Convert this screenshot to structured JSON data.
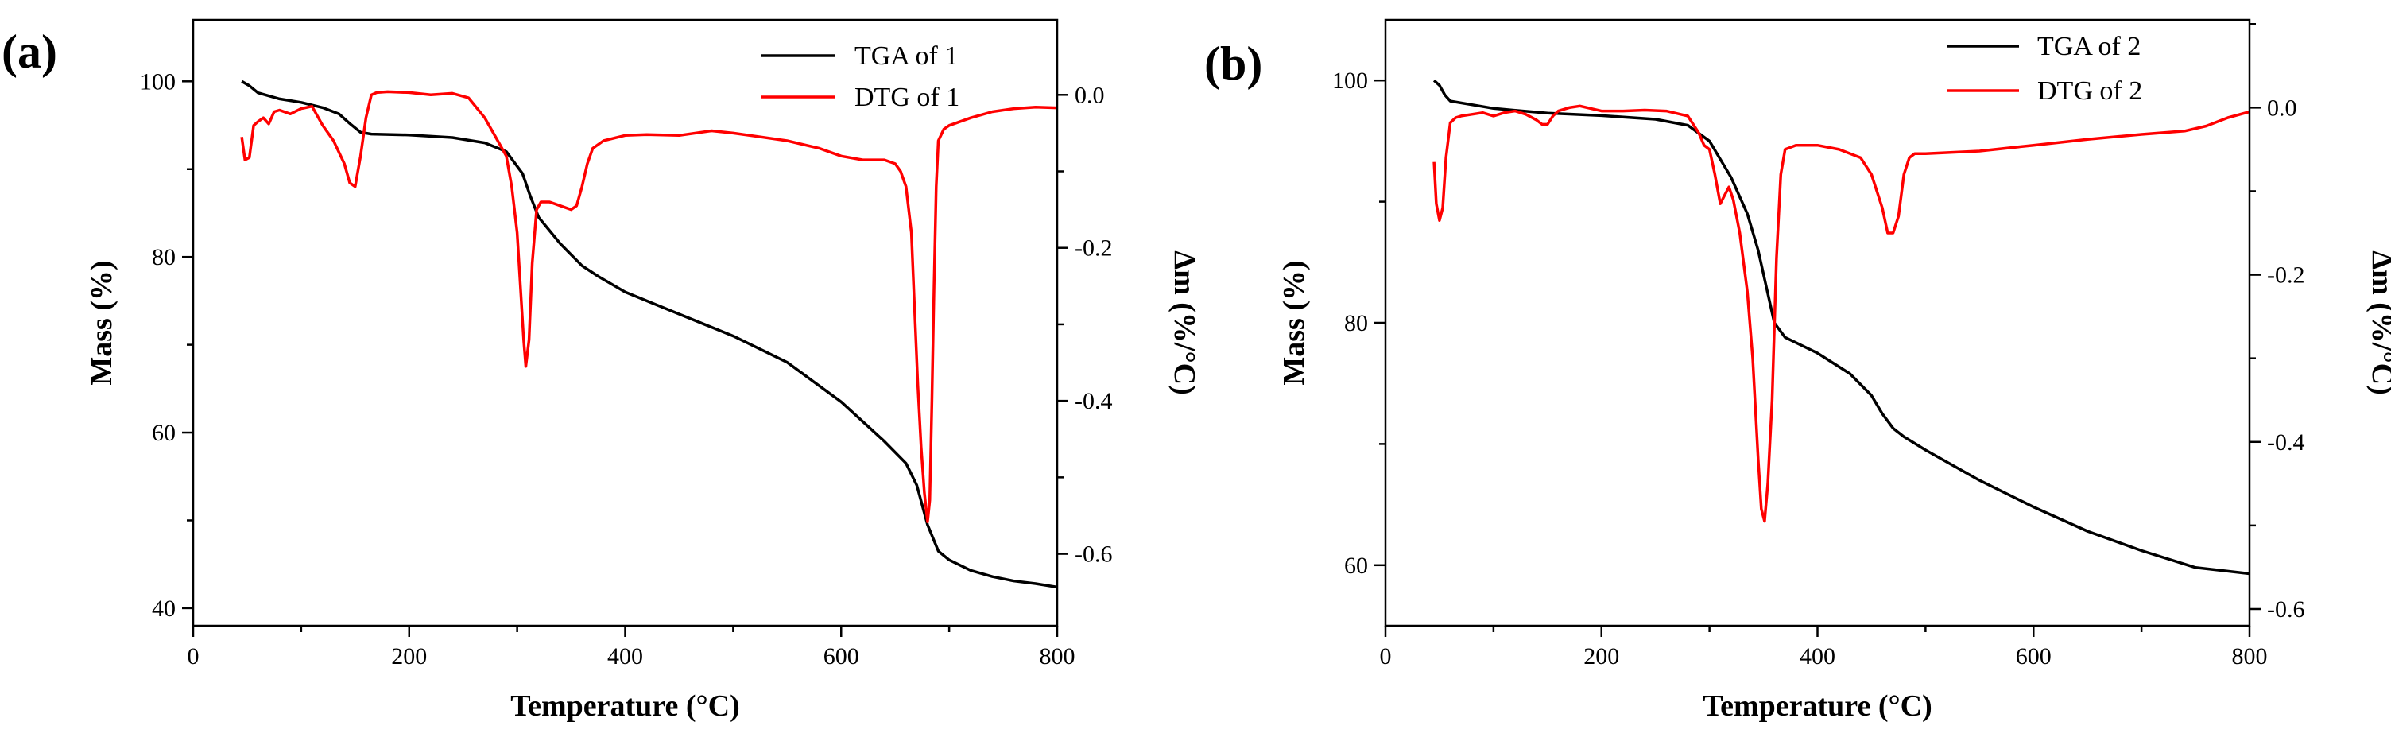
{
  "chart_data": [
    {
      "type": "line",
      "panel_label": "(a)",
      "xlabel": "Temperature (°C)",
      "ylabel": "Mass (%)",
      "y2label": "Δm (%/°C)",
      "xlim": [
        0,
        800
      ],
      "ylim": [
        38,
        107
      ],
      "y2lim": [
        -0.694,
        0.098
      ],
      "xticks": [
        0,
        200,
        400,
        600,
        800
      ],
      "yticks": [
        40,
        60,
        80,
        100
      ],
      "y2ticks": [
        0.0,
        -0.2,
        -0.4,
        -0.6
      ],
      "y2ticklabels": [
        "0.0",
        "-0.2",
        "-0.4",
        "-0.6"
      ],
      "legend_position": "top-right",
      "series": [
        {
          "name": "TGA of 1",
          "axis": "left",
          "color": "#000000",
          "x": [
            45,
            52,
            60,
            80,
            100,
            120,
            135,
            145,
            155,
            165,
            200,
            240,
            270,
            290,
            305,
            312,
            320,
            340,
            360,
            375,
            400,
            450,
            500,
            550,
            600,
            640,
            660,
            670,
            680,
            690,
            700,
            720,
            740,
            760,
            780,
            800
          ],
          "y": [
            100.0,
            99.5,
            98.7,
            98.0,
            97.6,
            97.0,
            96.3,
            95.2,
            94.2,
            94.0,
            93.9,
            93.6,
            93.0,
            92.0,
            89.5,
            87.0,
            84.5,
            81.5,
            79.0,
            77.8,
            76.0,
            73.5,
            71.0,
            68.0,
            63.5,
            59.0,
            56.5,
            54.0,
            49.5,
            46.5,
            45.5,
            44.3,
            43.6,
            43.1,
            42.8,
            42.4
          ]
        },
        {
          "name": "DTG of 1",
          "axis": "right",
          "color": "#ff0000",
          "x": [
            45,
            48,
            52,
            56,
            60,
            65,
            70,
            75,
            80,
            90,
            100,
            110,
            120,
            130,
            140,
            145,
            150,
            155,
            160,
            165,
            170,
            180,
            200,
            220,
            240,
            255,
            270,
            280,
            290,
            295,
            300,
            303,
            306,
            308,
            311,
            314,
            318,
            322,
            326,
            330,
            340,
            350,
            355,
            360,
            365,
            370,
            380,
            400,
            420,
            450,
            480,
            500,
            520,
            550,
            580,
            600,
            620,
            640,
            650,
            655,
            660,
            665,
            668,
            671,
            674,
            677,
            680,
            682,
            684,
            686,
            688,
            690,
            695,
            700,
            720,
            740,
            760,
            780,
            800
          ],
          "y": [
            -0.055,
            -0.085,
            -0.082,
            -0.04,
            -0.035,
            -0.03,
            -0.038,
            -0.022,
            -0.02,
            -0.025,
            -0.018,
            -0.015,
            -0.04,
            -0.06,
            -0.09,
            -0.115,
            -0.12,
            -0.08,
            -0.03,
            0.0,
            0.003,
            0.004,
            0.003,
            0.0,
            0.002,
            -0.004,
            -0.03,
            -0.055,
            -0.08,
            -0.12,
            -0.18,
            -0.25,
            -0.32,
            -0.355,
            -0.32,
            -0.22,
            -0.15,
            -0.14,
            -0.14,
            -0.14,
            -0.145,
            -0.15,
            -0.145,
            -0.12,
            -0.09,
            -0.07,
            -0.06,
            -0.053,
            -0.052,
            -0.053,
            -0.047,
            -0.05,
            -0.054,
            -0.06,
            -0.07,
            -0.08,
            -0.085,
            -0.085,
            -0.09,
            -0.1,
            -0.12,
            -0.18,
            -0.28,
            -0.38,
            -0.46,
            -0.52,
            -0.558,
            -0.53,
            -0.4,
            -0.25,
            -0.12,
            -0.06,
            -0.045,
            -0.04,
            -0.03,
            -0.022,
            -0.018,
            -0.016,
            -0.017
          ]
        }
      ]
    },
    {
      "type": "line",
      "panel_label": "(b)",
      "xlabel": "Temperature (°C)",
      "ylabel": "Mass (%)",
      "y2label": "Δm (%/°C)",
      "xlim": [
        0,
        800
      ],
      "ylim": [
        55,
        105
      ],
      "y2lim": [
        -0.62,
        0.105
      ],
      "xticks": [
        0,
        200,
        400,
        600,
        800
      ],
      "yticks": [
        60,
        80,
        100
      ],
      "y2ticks": [
        0.0,
        -0.2,
        -0.4,
        -0.6
      ],
      "y2ticklabels": [
        "0.0",
        "-0.2",
        "-0.4",
        "-0.6"
      ],
      "legend_position": "top-right",
      "series": [
        {
          "name": "TGA of 2",
          "axis": "left",
          "color": "#000000",
          "x": [
            45,
            50,
            55,
            60,
            80,
            100,
            150,
            200,
            250,
            280,
            300,
            320,
            335,
            345,
            355,
            360,
            370,
            400,
            430,
            450,
            460,
            470,
            480,
            500,
            550,
            600,
            650,
            700,
            750,
            800
          ],
          "y": [
            100.0,
            99.6,
            98.8,
            98.3,
            98.0,
            97.7,
            97.3,
            97.1,
            96.8,
            96.3,
            95.0,
            92.0,
            89.0,
            86.0,
            82.0,
            80.0,
            78.8,
            77.5,
            75.8,
            74.0,
            72.5,
            71.3,
            70.6,
            69.5,
            67.0,
            64.8,
            62.8,
            61.2,
            59.8,
            59.3
          ]
        },
        {
          "name": "DTG of 2",
          "axis": "right",
          "color": "#ff0000",
          "x": [
            45,
            47,
            50,
            53,
            56,
            60,
            65,
            70,
            80,
            90,
            100,
            110,
            120,
            130,
            140,
            145,
            150,
            155,
            160,
            170,
            180,
            200,
            220,
            240,
            260,
            280,
            290,
            295,
            300,
            305,
            310,
            314,
            318,
            322,
            328,
            335,
            340,
            345,
            348,
            351,
            354,
            358,
            362,
            366,
            370,
            380,
            400,
            420,
            440,
            450,
            460,
            465,
            470,
            475,
            480,
            485,
            490,
            500,
            550,
            600,
            650,
            700,
            720,
            740,
            760,
            780,
            800
          ],
          "y": [
            -0.065,
            -0.115,
            -0.135,
            -0.12,
            -0.06,
            -0.018,
            -0.012,
            -0.01,
            -0.008,
            -0.006,
            -0.01,
            -0.006,
            -0.004,
            -0.008,
            -0.015,
            -0.02,
            -0.02,
            -0.01,
            -0.004,
            0.0,
            0.002,
            -0.004,
            -0.004,
            -0.003,
            -0.004,
            -0.01,
            -0.03,
            -0.045,
            -0.05,
            -0.08,
            -0.115,
            -0.105,
            -0.095,
            -0.11,
            -0.15,
            -0.22,
            -0.3,
            -0.42,
            -0.48,
            -0.495,
            -0.45,
            -0.35,
            -0.18,
            -0.08,
            -0.05,
            -0.045,
            -0.045,
            -0.05,
            -0.06,
            -0.08,
            -0.12,
            -0.15,
            -0.15,
            -0.13,
            -0.08,
            -0.06,
            -0.055,
            -0.055,
            -0.052,
            -0.045,
            -0.038,
            -0.032,
            -0.03,
            -0.028,
            -0.022,
            -0.012,
            -0.005
          ]
        }
      ]
    }
  ]
}
